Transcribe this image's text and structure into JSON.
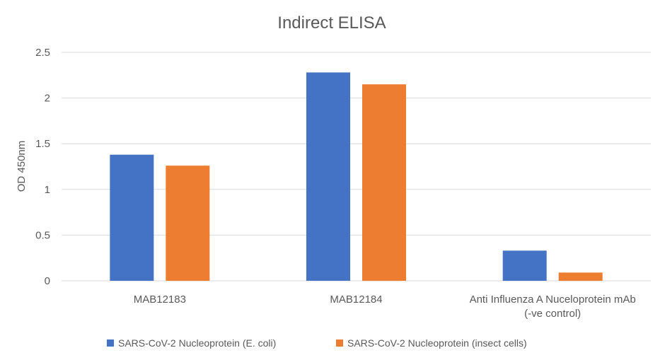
{
  "chart_data": {
    "type": "bar",
    "title": "Indirect ELISA",
    "xlabel": "",
    "ylabel": "OD 450nm",
    "ylim": [
      0,
      2.5
    ],
    "yticks": [
      "0",
      "0.5",
      "1",
      "1.5",
      "2",
      "2.5"
    ],
    "grid": true,
    "legend_position": "bottom",
    "categories": [
      [
        "MAB12183"
      ],
      [
        "MAB12184"
      ],
      [
        "Anti Influenza A Nuceloprotein mAb",
        "(-ve control)"
      ]
    ],
    "series": [
      {
        "name": "SARS-CoV-2 Nucleoprotein (E. coli)",
        "color": "#4472C4",
        "values": [
          1.38,
          2.28,
          0.33
        ]
      },
      {
        "name": "SARS-CoV-2 Nucleoprotein (insect cells)",
        "color": "#ED7D31",
        "values": [
          1.26,
          2.15,
          0.09
        ]
      }
    ]
  }
}
